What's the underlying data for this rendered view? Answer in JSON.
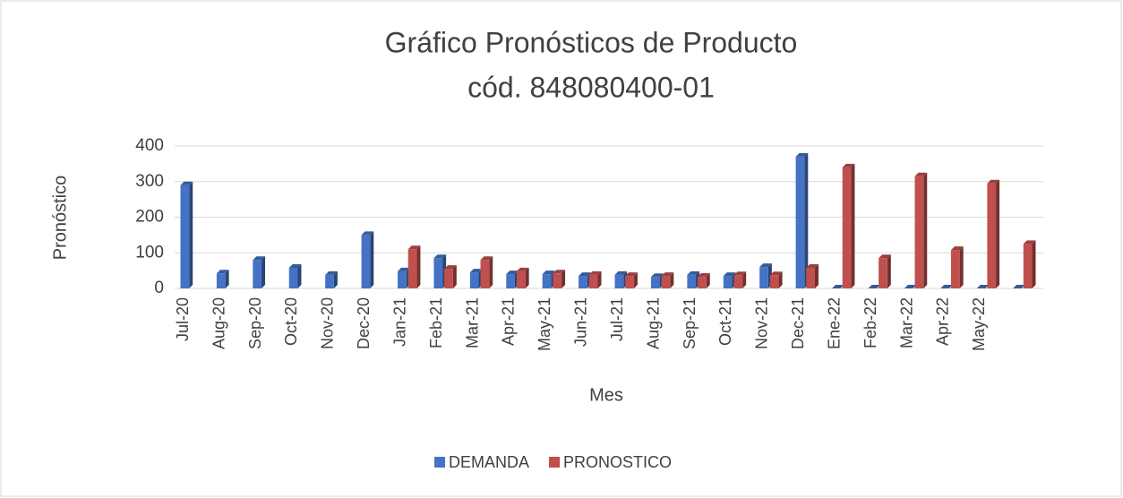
{
  "chart_data": {
    "type": "bar",
    "title": "Gráfico Pronósticos de Producto",
    "subtitle": "cód. 848080400-01",
    "x_label": "Mes",
    "y_label": "Pronóstico",
    "categories": [
      "Jul-20",
      "Aug-20",
      "Sep-20",
      "Oct-20",
      "Nov-20",
      "Dec-20",
      "Jan-21",
      "Feb-21",
      "Mar-21",
      "Apr-21",
      "May-21",
      "Jun-21",
      "Jul-21",
      "Aug-21",
      "Sep-21",
      "Oct-21",
      "Nov-21",
      "Dec-21",
      "Ene-22",
      "Feb-22",
      "Mar-22",
      "Apr-22",
      "May-22",
      null
    ],
    "series": [
      {
        "name": "DEMANDA",
        "color": "#4472c4",
        "values": [
          290,
          42,
          80,
          58,
          38,
          150,
          48,
          85,
          45,
          40,
          40,
          35,
          38,
          32,
          38,
          35,
          60,
          370,
          0,
          0,
          0,
          0,
          0,
          0
        ]
      },
      {
        "name": "PRONOSTICO",
        "color": "#c0504d",
        "values": [
          null,
          null,
          null,
          null,
          null,
          null,
          110,
          55,
          80,
          48,
          42,
          38,
          35,
          35,
          33,
          37,
          37,
          58,
          340,
          85,
          315,
          108,
          295,
          125
        ]
      }
    ],
    "ylim": [
      0,
      400
    ],
    "yticks": [
      0,
      100,
      200,
      300,
      400
    ],
    "grid": true,
    "legend": "bottom"
  }
}
